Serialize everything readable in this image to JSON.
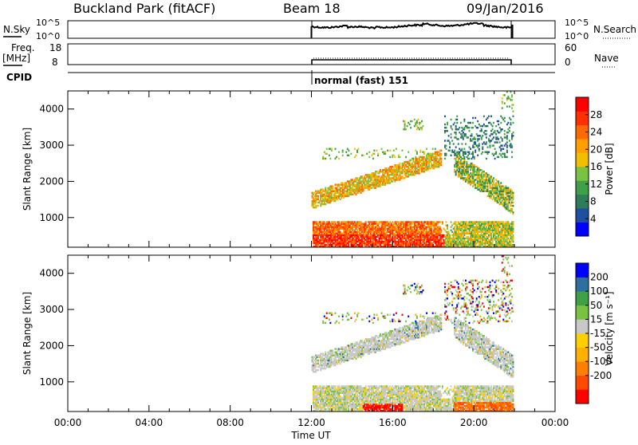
{
  "header": {
    "title": "Buckland Park (fitACF)",
    "beam": "Beam 18",
    "date": "09/Jan/2016"
  },
  "top_panels": {
    "nsky_label": "N.Sky",
    "nsearch_label": "N.Search",
    "freq_label": "Freq.",
    "freq_unit": "[MHz]",
    "nave_label": "Nave",
    "cpid_label": "CPID",
    "cpid_value": "normal (fast) 151",
    "noise_ticks": [
      "10^5",
      "10^0"
    ],
    "freq_ticks": [
      "18",
      "8"
    ],
    "nave_ticks": [
      "60",
      "0"
    ]
  },
  "x_axis": {
    "ticks": [
      "00:00",
      "04:00",
      "08:00",
      "12:00",
      "16:00",
      "20:00",
      "00:00"
    ],
    "label": "Time UT"
  },
  "colors": {
    "power_scale": [
      "#0000ff",
      "#1f4fa0",
      "#2e7d5a",
      "#3fa048",
      "#7ac242",
      "#f0c000",
      "#ffa000",
      "#ff6a00",
      "#ff3000",
      "#ff0000"
    ],
    "velocity_scale": [
      "#ff0000",
      "#ff4a00",
      "#ff8000",
      "#ffb000",
      "#ffd000",
      "#c8c8c8",
      "#7ac242",
      "#3fa048",
      "#2e6fa0",
      "#0000ff"
    ]
  },
  "chart_data": [
    {
      "type": "heatmap",
      "name": "power",
      "ylabel": "Slant Range [km]",
      "xlim_hours": [
        0,
        24
      ],
      "ylim_km": [
        180,
        4500
      ],
      "yticks": [
        "1000",
        "2000",
        "3000",
        "4000"
      ],
      "colorbar_label": "Power [dB]",
      "colorbar_ticks": [
        "28",
        "24",
        "20",
        "16",
        "12",
        "8",
        "4"
      ],
      "colorbar_range": [
        0,
        32
      ],
      "data_time_range_hours": [
        12.0,
        21.9
      ],
      "features": [
        {
          "label": "near-range echoes",
          "t_start": 12.0,
          "t_end": 21.9,
          "range_km": [
            200,
            900
          ],
          "power_db": 24
        },
        {
          "label": "rising band",
          "t_start": 12.0,
          "t_end": 18.5,
          "range_km": [
            1400,
            2600
          ],
          "power_db": 18
        },
        {
          "label": "descending band",
          "t_start": 19.0,
          "t_end": 21.9,
          "range_km": [
            1200,
            2800
          ],
          "power_db": 14
        }
      ]
    },
    {
      "type": "heatmap",
      "name": "velocity",
      "ylabel": "Slant Range [km]",
      "xlim_hours": [
        0,
        24
      ],
      "ylim_km": [
        180,
        4500
      ],
      "yticks": [
        "1000",
        "2000",
        "3000",
        "4000"
      ],
      "colorbar_label": "Velocity [m s⁻¹]",
      "colorbar_ticks": [
        "200",
        "100",
        "50",
        "15",
        "-15",
        "-50",
        "-100",
        "-200"
      ],
      "colorbar_range": [
        -250,
        250
      ],
      "data_time_range_hours": [
        12.0,
        21.9
      ]
    }
  ]
}
